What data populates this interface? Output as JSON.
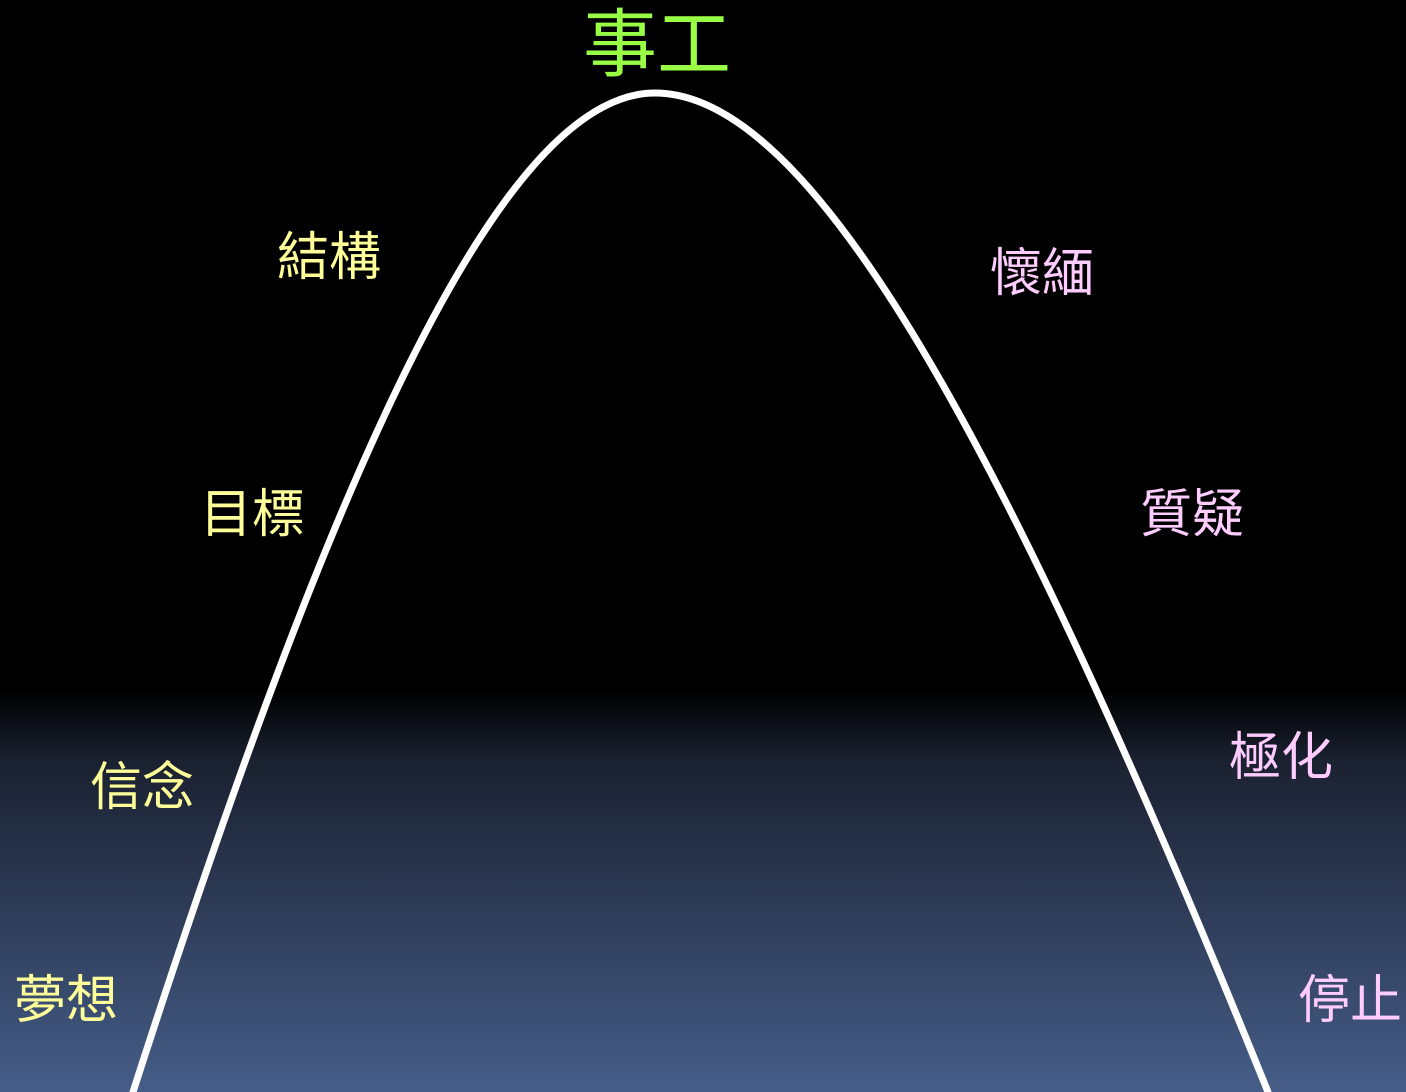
{
  "peak": {
    "label": "事工"
  },
  "rising_stages": [
    {
      "label": "夢想"
    },
    {
      "label": "信念"
    },
    {
      "label": "目標"
    },
    {
      "label": "結構"
    }
  ],
  "falling_stages": [
    {
      "label": "懷緬"
    },
    {
      "label": "質疑"
    },
    {
      "label": "極化"
    },
    {
      "label": "停止"
    }
  ],
  "colors": {
    "peak_text": "#99ff44",
    "rising_text": "#ffff99",
    "falling_text": "#ffccff",
    "curve": "#ffffff",
    "background_top": "#000000",
    "background_bottom": "#455d88"
  }
}
